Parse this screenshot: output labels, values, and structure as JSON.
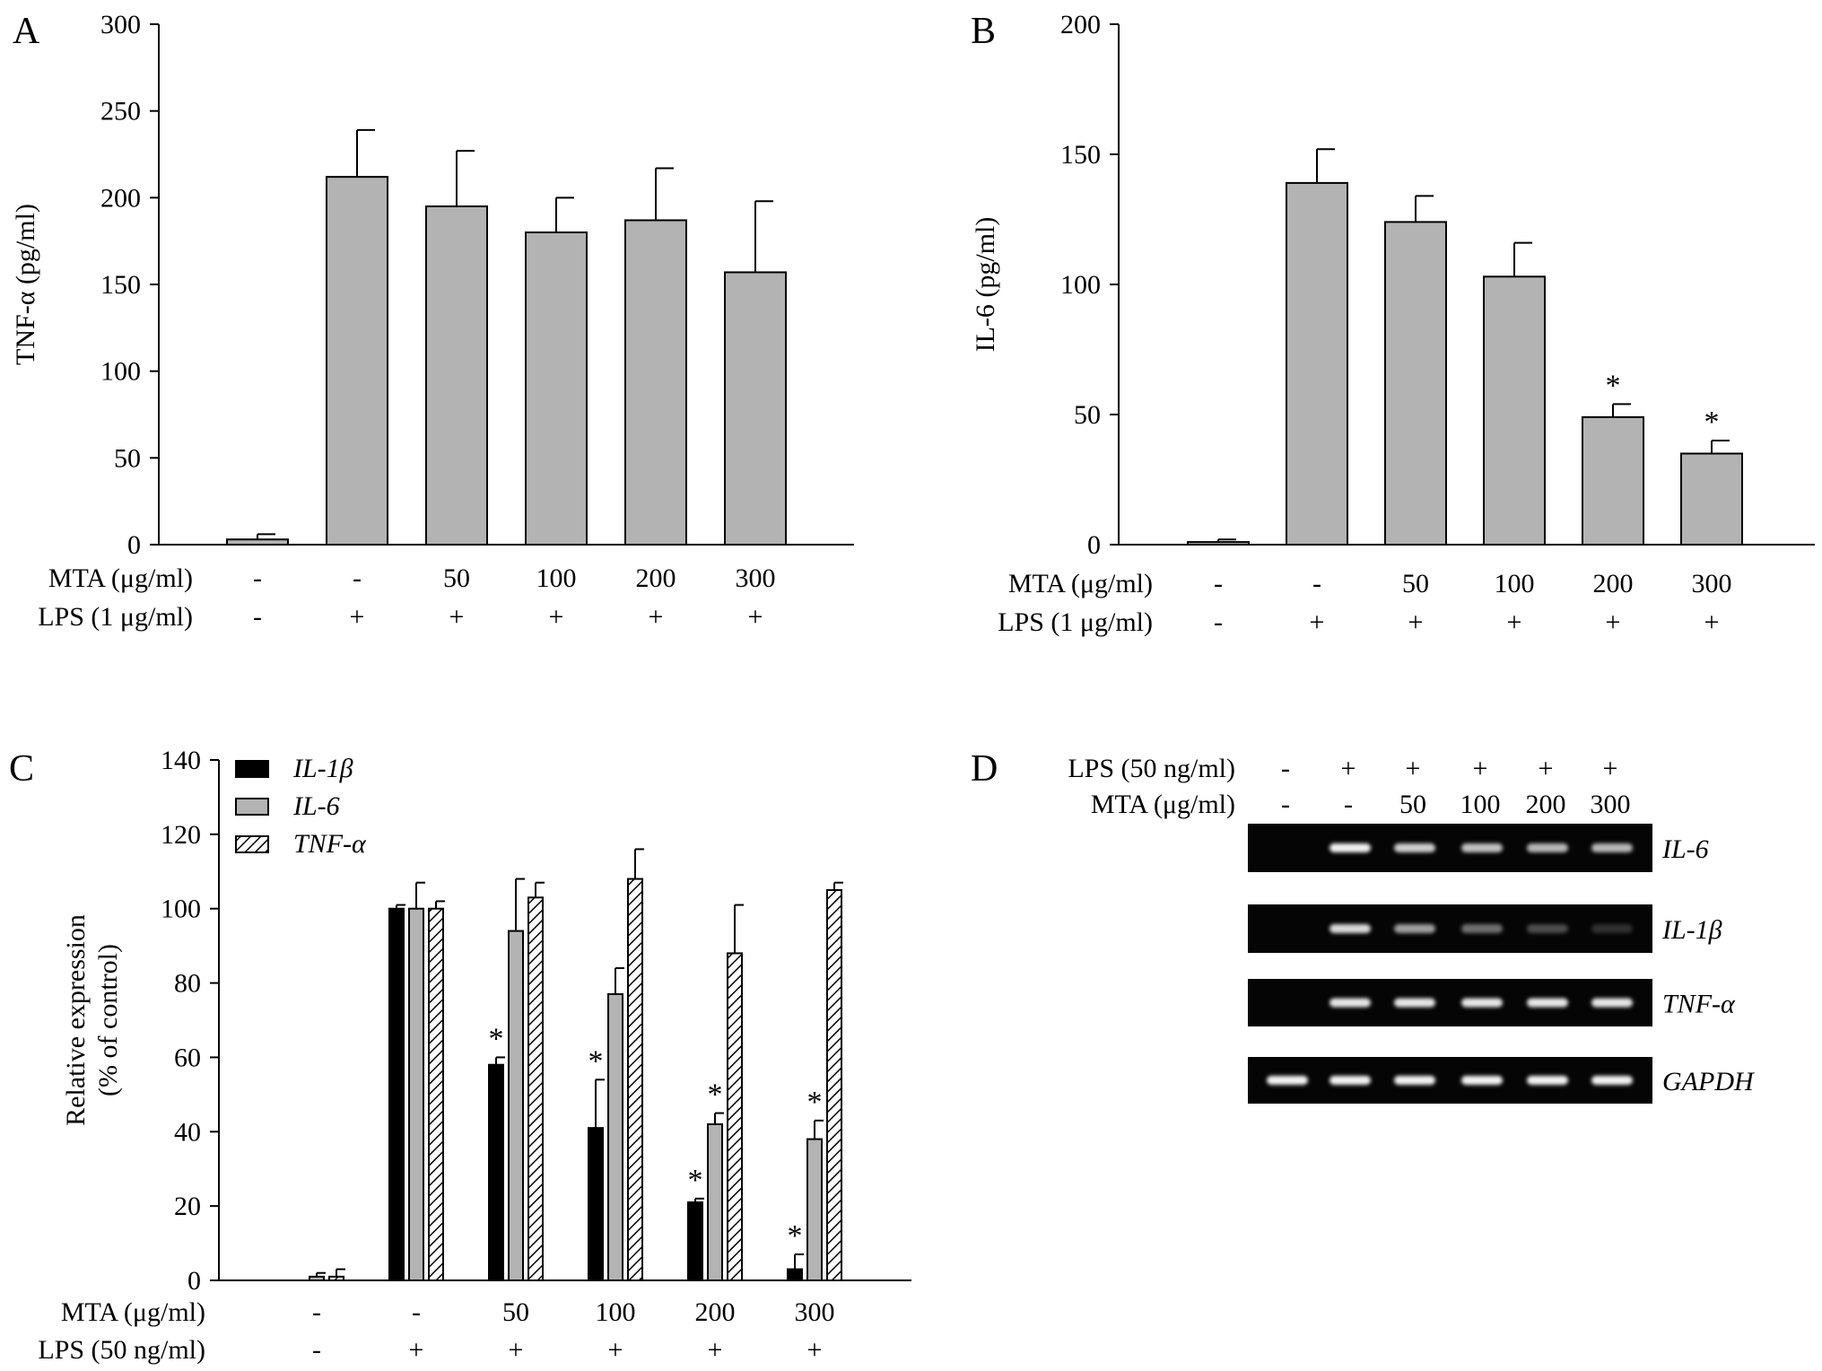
{
  "chart_data": [
    {
      "panel": "A",
      "type": "bar",
      "ylabel": "TNF-α (pg/ml)",
      "ylim": [
        0,
        300
      ],
      "yticks": [
        0,
        50,
        100,
        150,
        200,
        250,
        300
      ],
      "bar_color": "#b3b3b3",
      "values": [
        3,
        212,
        195,
        180,
        187,
        157
      ],
      "errors": [
        3,
        27,
        32,
        20,
        30,
        41
      ],
      "asterisk": [
        false,
        false,
        false,
        false,
        false,
        false
      ],
      "conditions": [
        {
          "label": "MTA (μg/ml)",
          "values": [
            "-",
            "-",
            "50",
            "100",
            "200",
            "300"
          ]
        },
        {
          "label": "LPS (1 μg/ml)",
          "values": [
            "-",
            "+",
            "+",
            "+",
            "+",
            "+"
          ]
        }
      ]
    },
    {
      "panel": "B",
      "type": "bar",
      "ylabel": "IL-6 (pg/ml)",
      "ylim": [
        0,
        200
      ],
      "yticks": [
        0,
        50,
        100,
        150,
        200
      ],
      "bar_color": "#b3b3b3",
      "values": [
        1,
        139,
        124,
        103,
        49,
        35
      ],
      "errors": [
        1,
        13,
        10,
        13,
        5,
        5
      ],
      "asterisk": [
        false,
        false,
        false,
        false,
        true,
        true
      ],
      "conditions": [
        {
          "label": "MTA (μg/ml)",
          "values": [
            "-",
            "-",
            "50",
            "100",
            "200",
            "300"
          ]
        },
        {
          "label": "LPS (1 μg/ml)",
          "values": [
            "-",
            "+",
            "+",
            "+",
            "+",
            "+"
          ]
        }
      ]
    },
    {
      "panel": "C",
      "type": "bar",
      "ylabel": [
        "Relative expression",
        "(% of control)"
      ],
      "ylim": [
        0,
        140
      ],
      "yticks": [
        0,
        20,
        40,
        60,
        80,
        100,
        120,
        140
      ],
      "series": [
        {
          "name": "IL-1β",
          "style": "solid-black",
          "values": [
            0,
            100,
            58,
            41,
            21,
            3
          ],
          "errors": [
            0,
            1,
            2,
            13,
            1,
            4
          ],
          "asterisk": [
            false,
            false,
            true,
            true,
            true,
            true
          ]
        },
        {
          "name": "IL-6",
          "style": "grey",
          "values": [
            1,
            100,
            94,
            77,
            42,
            38
          ],
          "errors": [
            1,
            7,
            14,
            7,
            3,
            5
          ],
          "asterisk": [
            false,
            false,
            false,
            false,
            true,
            true
          ]
        },
        {
          "name": "TNF-α",
          "style": "hatched",
          "values": [
            1,
            100,
            103,
            108,
            88,
            105
          ],
          "errors": [
            2,
            2,
            4,
            8,
            13,
            2
          ],
          "asterisk": [
            false,
            false,
            false,
            false,
            false,
            false
          ]
        }
      ],
      "conditions": [
        {
          "label": "MTA (μg/ml)",
          "values": [
            "-",
            "-",
            "50",
            "100",
            "200",
            "300"
          ]
        },
        {
          "label": "LPS (50 ng/ml)",
          "values": [
            "-",
            "+",
            "+",
            "+",
            "+",
            "+"
          ]
        }
      ]
    }
  ],
  "gel": {
    "panel": "D",
    "conditions": [
      {
        "label": "LPS (50 ng/ml)",
        "values": [
          "-",
          "+",
          "+",
          "+",
          "+",
          "+"
        ]
      },
      {
        "label": "MTA (μg/ml)",
        "values": [
          "-",
          "-",
          "50",
          "100",
          "200",
          "300"
        ]
      }
    ],
    "rows": [
      {
        "gene": "IL-6",
        "intensity": [
          0,
          1.0,
          0.85,
          0.8,
          0.75,
          0.75
        ]
      },
      {
        "gene": "IL-1β",
        "intensity": [
          0,
          0.9,
          0.65,
          0.45,
          0.3,
          0.18
        ]
      },
      {
        "gene": "TNF-α",
        "intensity": [
          0,
          0.95,
          0.95,
          0.95,
          0.95,
          0.95
        ]
      },
      {
        "gene": "GAPDH",
        "intensity": [
          1,
          1,
          1,
          1,
          1,
          1
        ]
      }
    ]
  },
  "colors": {
    "bar_grey": "#b3b3b3",
    "bar_black": "#000000",
    "gel_background": "#050505",
    "band": "#f2f2f2"
  }
}
